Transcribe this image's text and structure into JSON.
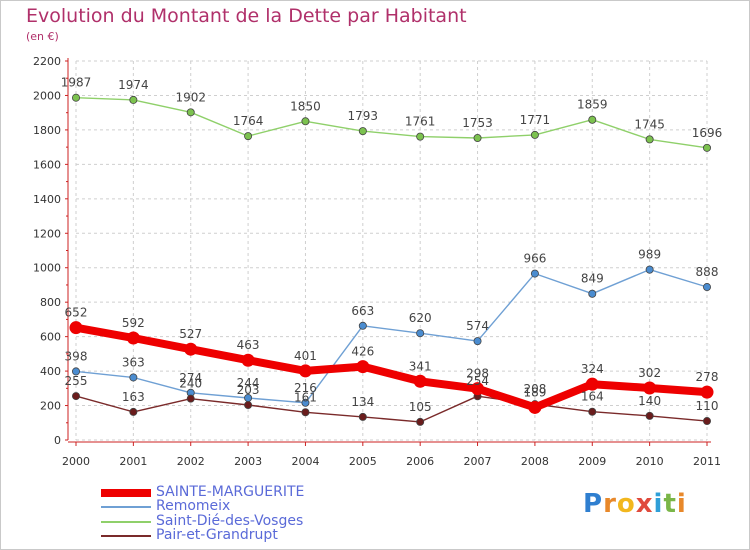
{
  "title": "Evolution du Montant de la Dette par Habitant",
  "subtitle": "(en €)",
  "logo": {
    "text": "Proxiti",
    "colors": [
      "#2f7fd0",
      "#e8882a",
      "#f2b71e",
      "#e04a3c",
      "#2f9fd8",
      "#7ab648",
      "#e8882a"
    ]
  },
  "chart_data": {
    "type": "line",
    "x": [
      "2000",
      "2001",
      "2002",
      "2003",
      "2004",
      "2005",
      "2006",
      "2007",
      "2008",
      "2009",
      "2010",
      "2011"
    ],
    "ylim": [
      0,
      2200
    ],
    "yticks": [
      "0",
      "200",
      "400",
      "600",
      "800",
      "1000",
      "1200",
      "1400",
      "1600",
      "1800",
      "2000",
      "2200"
    ],
    "grid": true,
    "legend_position": "bottom-left",
    "series": [
      {
        "name": "Saint-Dié-des-Vosges",
        "color": "#8fd06a",
        "marker_color": "#7cc24f",
        "values": [
          1987,
          1974,
          1902,
          1764,
          1850,
          1793,
          1761,
          1753,
          1771,
          1859,
          1745,
          1696
        ],
        "labels": [
          "1987",
          "1974",
          "1902",
          "1764",
          "1850",
          "1793",
          "1761",
          "1753",
          "1771",
          "1859",
          "1745",
          "1696"
        ]
      },
      {
        "name": "Remomeix",
        "color": "#6fa0d4",
        "marker_color": "#4a8cd0",
        "values": [
          398,
          363,
          274,
          244,
          216,
          663,
          620,
          574,
          966,
          849,
          989,
          888
        ],
        "labels": [
          "398",
          "363",
          "274",
          "244",
          "216",
          "663",
          "620",
          "574",
          "966",
          "849",
          "989",
          "888"
        ]
      },
      {
        "name": "Pair-et-Grandrupt",
        "color": "#7a2a2a",
        "marker_color": "#6a1c1c",
        "values": [
          255,
          163,
          240,
          203,
          161,
          134,
          105,
          254,
          208,
          164,
          140,
          110
        ],
        "labels": [
          "255",
          "163",
          "240",
          "203",
          "161",
          "134",
          "105",
          "254",
          "208",
          "164",
          "140",
          "110"
        ]
      },
      {
        "name": "SAINTE-MARGUERITE",
        "color": "#ee0000",
        "marker_color": "#ee0000",
        "values": [
          652,
          592,
          527,
          463,
          401,
          426,
          341,
          298,
          189,
          324,
          302,
          278
        ],
        "labels": [
          "652",
          "592",
          "527",
          "463",
          "401",
          "426",
          "341",
          "298",
          "189",
          "324",
          "302",
          "278"
        ]
      }
    ],
    "legend": [
      "SAINTE-MARGUERITE",
      "Remomeix",
      "Saint-Dié-des-Vosges",
      "Pair-et-Grandrupt"
    ]
  }
}
